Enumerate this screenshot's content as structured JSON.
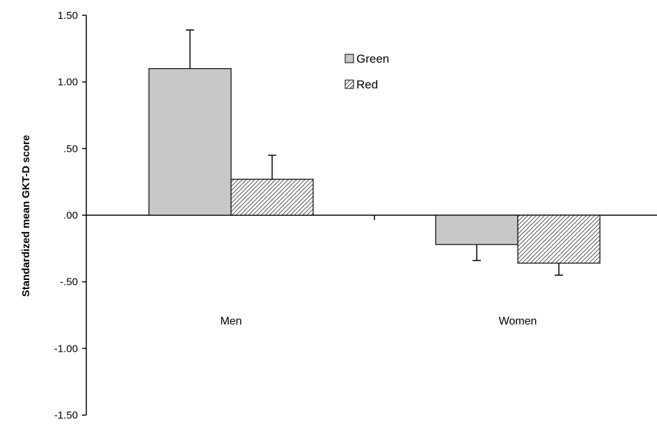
{
  "chart_data": {
    "type": "bar",
    "title": "",
    "xlabel": "",
    "ylabel": "Standardized mean GKT-D score",
    "categories": [
      "Men",
      "Women"
    ],
    "series": [
      {
        "name": "Green",
        "values": [
          1.1,
          -0.22
        ],
        "error": [
          0.29,
          0.12
        ],
        "fill": "#c8c8c8",
        "pattern": "solid"
      },
      {
        "name": "Red",
        "values": [
          0.27,
          -0.36
        ],
        "error": [
          0.18,
          0.09
        ],
        "fill": "#ffffff",
        "pattern": "hatched"
      }
    ],
    "ylim": [
      -1.5,
      1.5
    ],
    "yticks": [
      1.5,
      1.0,
      0.5,
      0.0,
      -0.5,
      -1.0,
      -1.5
    ],
    "ytick_labels": [
      "1.50",
      "1.00",
      ".50",
      ".00",
      "-.50",
      "-1.00",
      "-1.50"
    ],
    "grid": false,
    "legend_position": "top-center",
    "category_labels_position": "below-bars"
  }
}
